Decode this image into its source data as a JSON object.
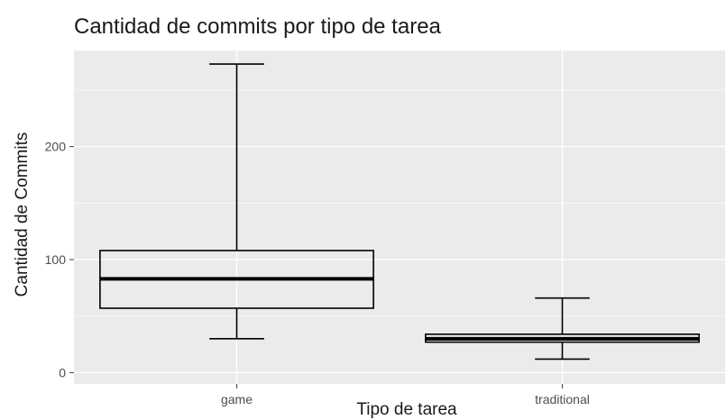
{
  "chart_data": {
    "type": "boxplot",
    "title": "Cantidad de commits por tipo de tarea",
    "xlabel": "Tipo de tarea",
    "ylabel": "Cantidad de Commits",
    "categories": [
      "game",
      "traditional"
    ],
    "boxes": [
      {
        "category": "game",
        "min": 30,
        "q1": 57,
        "median": 83,
        "q3": 108,
        "max": 273
      },
      {
        "category": "traditional",
        "min": 12,
        "q1": 27,
        "median": 30,
        "q3": 34,
        "max": 66
      }
    ],
    "yticks": [
      0,
      100,
      200
    ],
    "ylim": [
      -10,
      285
    ],
    "grid": true,
    "colors": {
      "panel": "#ebebeb",
      "grid": "#ffffff",
      "box": "#000000",
      "tick": "#4d4d4d"
    }
  }
}
